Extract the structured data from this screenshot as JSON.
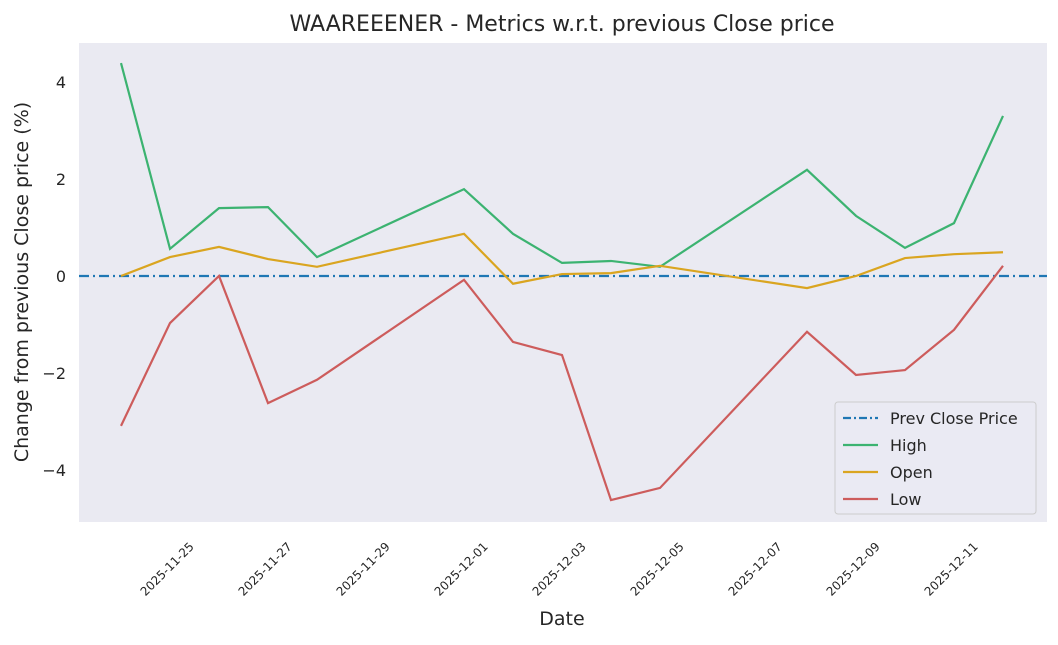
{
  "chart_data": {
    "type": "line",
    "title": "WAAREEENER - Metrics w.r.t. previous Close price",
    "xlabel": "Date",
    "ylabel": "Change from previous Close price (%)",
    "x": [
      "2025-11-24",
      "2025-11-25",
      "2025-11-26",
      "2025-11-27",
      "2025-11-28",
      "2025-12-01",
      "2025-12-02",
      "2025-12-03",
      "2025-12-04",
      "2025-12-05",
      "2025-12-08",
      "2025-12-09",
      "2025-12-10",
      "2025-12-11",
      "2025-12-12"
    ],
    "xticks": [
      "2025-11-25",
      "2025-11-27",
      "2025-11-29",
      "2025-12-01",
      "2025-12-03",
      "2025-12-05",
      "2025-12-07",
      "2025-12-09",
      "2025-12-11"
    ],
    "yticks": [
      -4,
      -2,
      0,
      2,
      4
    ],
    "ylim": [
      -5.05,
      4.8
    ],
    "xlim": [
      "2025-11-23.1",
      "2025-12-12.9"
    ],
    "grid": false,
    "background": "#eaeaf2",
    "legend_position": "bottom-right",
    "reference_line": {
      "name": "Prev Close Price",
      "value": 0,
      "color": "#1f77b4",
      "style": "dash-dot"
    },
    "series": [
      {
        "name": "High",
        "color": "#3cb371",
        "values": [
          4.39,
          0.56,
          1.4,
          1.42,
          0.39,
          1.79,
          0.87,
          0.27,
          0.31,
          0.19,
          2.19,
          1.24,
          0.58,
          1.09,
          3.3
        ]
      },
      {
        "name": "Open",
        "color": "#daa520",
        "values": [
          0.0,
          0.39,
          0.6,
          0.35,
          0.19,
          0.87,
          -0.16,
          0.04,
          0.06,
          0.21,
          -0.25,
          0.0,
          0.37,
          0.45,
          0.49
        ]
      },
      {
        "name": "Low",
        "color": "#cd5c5c",
        "values": [
          -3.09,
          -0.97,
          0.0,
          -2.62,
          -2.14,
          -0.08,
          -1.36,
          -1.63,
          -4.62,
          -4.37,
          -1.15,
          -2.04,
          -1.94,
          -1.11,
          0.21
        ]
      }
    ]
  }
}
